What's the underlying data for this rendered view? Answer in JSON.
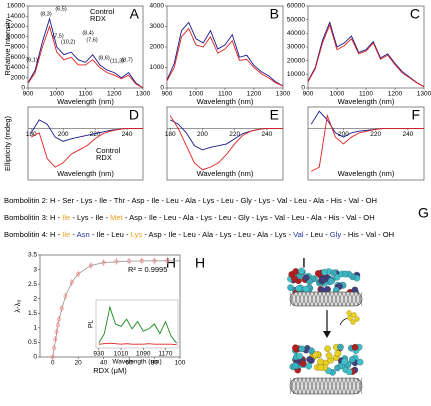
{
  "chart_data": [
    {
      "type": "line",
      "panel": "A",
      "xlabel": "Wavelength (nm)",
      "ylabel": "Relative Intensity",
      "xlim": [
        900,
        1300
      ],
      "ylim": [
        0,
        16000
      ],
      "xticks": [
        900,
        1000,
        1100,
        1200,
        1300
      ],
      "yticks": [
        0,
        2000,
        4000,
        6000,
        8000,
        10000,
        12000,
        14000,
        16000
      ],
      "x": [
        900,
        925,
        950,
        975,
        1000,
        1025,
        1050,
        1075,
        1100,
        1125,
        1150,
        1175,
        1200,
        1225,
        1250,
        1275,
        1300
      ],
      "series": [
        {
          "name": "Control",
          "color": "#1a1a8c",
          "values": [
            1000,
            3500,
            9000,
            13500,
            8000,
            6500,
            7000,
            5500,
            5000,
            6500,
            4500,
            3500,
            3000,
            2000,
            3000,
            1000,
            0
          ]
        },
        {
          "name": "RDX",
          "color": "#e02020",
          "values": [
            900,
            3000,
            8000,
            12000,
            7000,
            5500,
            6000,
            4500,
            4500,
            5500,
            4000,
            3000,
            2500,
            1800,
            2500,
            800,
            0
          ]
        }
      ],
      "annotations": [
        "(8,3)",
        "(6,5)",
        "(7,5)",
        "(10,2)",
        "(8,4)",
        "(7,6)",
        "(8,6)",
        "(11,3)",
        "(8,7)",
        "(9,1)"
      ]
    },
    {
      "type": "line",
      "panel": "B",
      "xlabel": "Wavelength (nm)",
      "xlim": [
        900,
        1300
      ],
      "ylim": [
        0,
        4000
      ],
      "xticks": [
        900,
        1000,
        1100,
        1200,
        1300
      ],
      "yticks": [
        0,
        1000,
        2000,
        3000,
        4000
      ],
      "x": [
        900,
        925,
        950,
        975,
        1000,
        1025,
        1050,
        1075,
        1100,
        1125,
        1150,
        1175,
        1200,
        1225,
        1250,
        1275,
        1300
      ],
      "series": [
        {
          "color": "#1a1a8c",
          "values": [
            400,
            1200,
            2800,
            3200,
            2400,
            2200,
            2800,
            1900,
            2100,
            2600,
            1500,
            1600,
            1100,
            800,
            600,
            300,
            100
          ]
        },
        {
          "color": "#e02020",
          "values": [
            350,
            1000,
            2500,
            2900,
            2100,
            2000,
            2500,
            1700,
            1900,
            2300,
            1350,
            1400,
            1000,
            700,
            500,
            250,
            100
          ]
        }
      ]
    },
    {
      "type": "line",
      "panel": "C",
      "xlabel": "Wavelength (nm)",
      "xlim": [
        900,
        1300
      ],
      "ylim": [
        0,
        60000
      ],
      "xticks": [
        900,
        1000,
        1100,
        1200,
        1300
      ],
      "yticks": [
        0,
        10000,
        20000,
        30000,
        40000,
        50000,
        60000
      ],
      "x": [
        900,
        925,
        950,
        975,
        1000,
        1025,
        1050,
        1075,
        1100,
        1125,
        1150,
        1175,
        1200,
        1225,
        1250,
        1275,
        1300
      ],
      "series": [
        {
          "color": "#1a1a8c",
          "values": [
            5000,
            15000,
            35000,
            48000,
            30000,
            33000,
            38000,
            26000,
            28000,
            34000,
            22000,
            25000,
            18000,
            12000,
            8000,
            4000,
            1000
          ]
        },
        {
          "color": "#e02020",
          "values": [
            4500,
            14000,
            33000,
            46000,
            28000,
            31000,
            36000,
            25000,
            27000,
            33000,
            21000,
            24000,
            17000,
            11000,
            7500,
            3800,
            900
          ]
        }
      ]
    },
    {
      "type": "line",
      "panel": "D",
      "xlabel": "Wavelength (nm)",
      "ylabel": "Ellipticity (mdeg)",
      "xlim": [
        178,
        250
      ],
      "ylim": [
        -60,
        25
      ],
      "xticks": [
        180,
        200,
        220,
        240
      ],
      "x": [
        180,
        185,
        190,
        195,
        200,
        205,
        210,
        215,
        220,
        225,
        230,
        235,
        240,
        245,
        250
      ],
      "series": [
        {
          "name": "Control",
          "color": "#1a1a8c",
          "values": [
            -5,
            10,
            5,
            -10,
            -15,
            -12,
            -10,
            -8,
            -6,
            -4,
            -2,
            -1,
            0,
            0,
            0
          ]
        },
        {
          "name": "RDX",
          "color": "#e02020",
          "values": [
            -10,
            -5,
            -35,
            -45,
            -40,
            -30,
            -25,
            -20,
            -12,
            -6,
            -3,
            -1,
            0,
            0,
            0
          ]
        }
      ]
    },
    {
      "type": "line",
      "panel": "E",
      "xlabel": "Wavelength (nm)",
      "xlim": [
        178,
        250
      ],
      "ylim": [
        -60,
        25
      ],
      "xticks": [
        180,
        200,
        220,
        240
      ],
      "x": [
        180,
        185,
        190,
        195,
        200,
        205,
        210,
        215,
        220,
        225,
        230,
        235,
        240,
        245,
        250
      ],
      "series": [
        {
          "color": "#1a1a8c",
          "values": [
            10,
            5,
            -5,
            -20,
            -25,
            -22,
            -20,
            -18,
            -12,
            -6,
            -3,
            -1,
            0,
            0,
            0
          ]
        },
        {
          "color": "#e02020",
          "values": [
            15,
            0,
            -20,
            -40,
            -48,
            -45,
            -40,
            -30,
            -18,
            -8,
            -3,
            -1,
            0,
            0,
            0
          ]
        }
      ]
    },
    {
      "type": "line",
      "panel": "F",
      "xlabel": "Wavelength (nm)",
      "xlim": [
        178,
        250
      ],
      "ylim": [
        -60,
        25
      ],
      "xticks": [
        200,
        220,
        240
      ],
      "x": [
        180,
        185,
        190,
        195,
        200,
        205,
        210,
        215,
        220,
        225,
        230,
        235,
        240,
        245,
        250
      ],
      "series": [
        {
          "color": "#1a1a8c",
          "values": [
            5,
            20,
            10,
            -5,
            -10,
            -5,
            -3,
            -2,
            -1,
            0,
            0,
            0,
            0,
            0,
            0
          ]
        },
        {
          "color": "#e02020",
          "values": [
            -50,
            -45,
            15,
            -10,
            -18,
            -10,
            -5,
            -3,
            -1,
            0,
            0,
            0,
            0,
            0,
            0
          ]
        }
      ]
    },
    {
      "type": "scatter",
      "panel": "H",
      "xlabel": "RDX (μM)",
      "ylabel": "λ-λ₀",
      "r2": "R² = 0.9995",
      "color": "#e88080",
      "xlim": [
        -10,
        100
      ],
      "ylim": [
        0,
        3.5
      ],
      "xticks": [
        0,
        20,
        40,
        60,
        80,
        100
      ],
      "yticks": [
        0,
        0.5,
        1,
        1.5,
        2,
        2.5,
        3,
        3.5
      ],
      "x": [
        0,
        1,
        2,
        3,
        4,
        5,
        7,
        10,
        15,
        20,
        30,
        40,
        50,
        60,
        70,
        80,
        90
      ],
      "values": [
        0,
        0.31,
        0.6,
        0.86,
        1.09,
        1.3,
        1.66,
        2.09,
        2.56,
        2.85,
        3.14,
        3.24,
        3.28,
        3.29,
        3.3,
        3.3,
        3.3
      ],
      "errors": [
        0.12,
        0.12,
        0.12,
        0.12,
        0.12,
        0.12,
        0.12,
        0.12,
        0.12,
        0.12,
        0.12,
        0.12,
        0.12,
        0.12,
        0.12,
        0.12,
        0.12
      ],
      "fit": {
        "color": "#999999",
        "x": [
          0,
          5,
          10,
          15,
          20,
          30,
          40,
          60,
          80,
          100
        ],
        "values": [
          0,
          1.3,
          2.09,
          2.56,
          2.85,
          3.14,
          3.24,
          3.29,
          3.3,
          3.3
        ]
      }
    },
    {
      "type": "line",
      "xlabel": "Wavelength (nm)",
      "ylabel": "PL",
      "xlim": [
        920,
        1215
      ],
      "ylim": [
        0,
        1
      ],
      "xticks": [
        930,
        1010,
        1090,
        1170
      ],
      "x": [
        930,
        950,
        970,
        990,
        1010,
        1030,
        1050,
        1070,
        1090,
        1110,
        1130,
        1150,
        1170,
        1190,
        1210
      ],
      "series": [
        {
          "color": "#1a8a1a",
          "values": [
            0.1,
            0.3,
            0.85,
            0.5,
            0.45,
            0.6,
            0.4,
            0.55,
            0.35,
            0.4,
            0.5,
            0.3,
            0.55,
            0.25,
            0.1
          ]
        },
        {
          "color": "#e02020",
          "values": [
            0.08,
            0.09,
            0.1,
            0.09,
            0.08,
            0.09,
            0.08,
            0.08,
            0.08,
            0.09,
            0.08,
            0.08,
            0.08,
            0.08,
            0.07
          ]
        }
      ]
    }
  ],
  "peptides": {
    "panel": "G",
    "rows": [
      {
        "segments": [
          {
            "text": "Bombolitin 2: H - Ser - Lys - Ile - Thr - Asp - Ile - Leu - Ala - Lys - Leu - Gly - Lys - Val - Leu - Ala - His - Val - OH"
          }
        ]
      },
      {
        "segments": [
          {
            "text": "Bombolitin 3: H - "
          },
          {
            "text": "Ile",
            "color": "#f0a020"
          },
          {
            "text": " - Lys - Ile - "
          },
          {
            "text": "Met",
            "color": "#f0a020"
          },
          {
            "text": " - Asp - Ile - Leu - Ala - Lys - Leu - Gly - Lys - Val - Leu - Ala - His - Val - OH"
          }
        ]
      },
      {
        "segments": [
          {
            "text": "Bombolitin 4: H - "
          },
          {
            "text": "Ile",
            "color": "#f0a020"
          },
          {
            "text": " - "
          },
          {
            "text": "Asn",
            "color": "#2030a0"
          },
          {
            "text": " - Ile - Leu - "
          },
          {
            "text": "Lys",
            "color": "#f0a020"
          },
          {
            "text": " - Asp - Ile - Leu - Ala - Lys - Leu - Ala - Lys - "
          },
          {
            "text": "Val",
            "color": "#2030a0"
          },
          {
            "text": " - Leu - "
          },
          {
            "text": "Gly",
            "color": "#2030a0"
          },
          {
            "text": " - His - Val - OH"
          }
        ]
      }
    ]
  },
  "illustration": {
    "panel": "I"
  }
}
